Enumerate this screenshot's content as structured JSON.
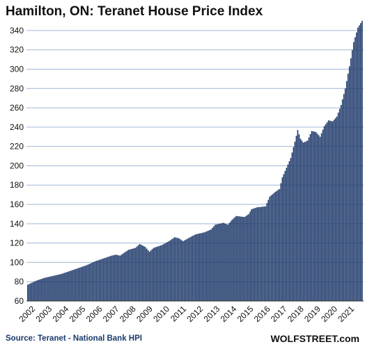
{
  "chart_data": {
    "type": "bar",
    "title": "Hamilton, ON: Teranet House Price Index",
    "xlabel": "",
    "ylabel": "",
    "ylim": [
      60,
      350
    ],
    "yticks": [
      60,
      80,
      100,
      120,
      140,
      160,
      180,
      200,
      220,
      240,
      260,
      280,
      300,
      320,
      340
    ],
    "grid": true,
    "bar_color": "#1f3a6b",
    "x_tick_labels": [
      "2002",
      "2003",
      "2004",
      "2005",
      "2006",
      "2007",
      "2008",
      "2009",
      "2010",
      "2011",
      "2012",
      "2013",
      "2014",
      "2015",
      "2016",
      "2017",
      "2018",
      "2019",
      "2020",
      "2021"
    ],
    "start": "2002-01",
    "frequency": "monthly",
    "keyframes": [
      [
        "2002-01",
        77
      ],
      [
        "2002-07",
        81
      ],
      [
        "2003-01",
        84
      ],
      [
        "2003-07",
        86
      ],
      [
        "2004-01",
        88
      ],
      [
        "2004-07",
        91
      ],
      [
        "2005-01",
        94
      ],
      [
        "2005-07",
        97
      ],
      [
        "2006-01",
        101
      ],
      [
        "2006-07",
        104
      ],
      [
        "2007-01",
        107
      ],
      [
        "2007-04",
        108
      ],
      [
        "2007-07",
        107
      ],
      [
        "2008-01",
        113
      ],
      [
        "2008-06",
        115
      ],
      [
        "2008-09",
        119
      ],
      [
        "2009-01",
        116
      ],
      [
        "2009-04",
        111
      ],
      [
        "2009-07",
        115
      ],
      [
        "2010-01",
        118
      ],
      [
        "2010-06",
        122
      ],
      [
        "2010-10",
        126
      ],
      [
        "2011-01",
        125
      ],
      [
        "2011-04",
        122
      ],
      [
        "2011-09",
        126
      ],
      [
        "2012-01",
        129
      ],
      [
        "2012-07",
        131
      ],
      [
        "2012-12",
        134
      ],
      [
        "2013-03",
        139
      ],
      [
        "2013-09",
        141
      ],
      [
        "2013-12",
        139
      ],
      [
        "2014-03",
        144
      ],
      [
        "2014-06",
        148
      ],
      [
        "2014-12",
        147
      ],
      [
        "2015-03",
        150
      ],
      [
        "2015-05",
        155
      ],
      [
        "2015-09",
        157
      ],
      [
        "2016-03",
        158
      ],
      [
        "2016-06",
        168
      ],
      [
        "2016-10",
        173
      ],
      [
        "2017-01",
        176
      ],
      [
        "2017-03",
        188
      ],
      [
        "2017-06",
        198
      ],
      [
        "2017-09",
        208
      ],
      [
        "2017-12",
        225
      ],
      [
        "2018-02",
        237
      ],
      [
        "2018-04",
        228
      ],
      [
        "2018-06",
        224
      ],
      [
        "2018-09",
        226
      ],
      [
        "2018-12",
        236
      ],
      [
        "2019-03",
        235
      ],
      [
        "2019-06",
        230
      ],
      [
        "2019-09",
        241
      ],
      [
        "2019-12",
        247
      ],
      [
        "2020-03",
        246
      ],
      [
        "2020-06",
        251
      ],
      [
        "2020-09",
        263
      ],
      [
        "2020-12",
        280
      ],
      [
        "2021-03",
        303
      ],
      [
        "2021-06",
        328
      ],
      [
        "2021-09",
        343
      ],
      [
        "2021-12",
        350
      ]
    ]
  },
  "source": "Source: Teranet - National Bank HPI",
  "brand": "WOLFSTREET.com"
}
